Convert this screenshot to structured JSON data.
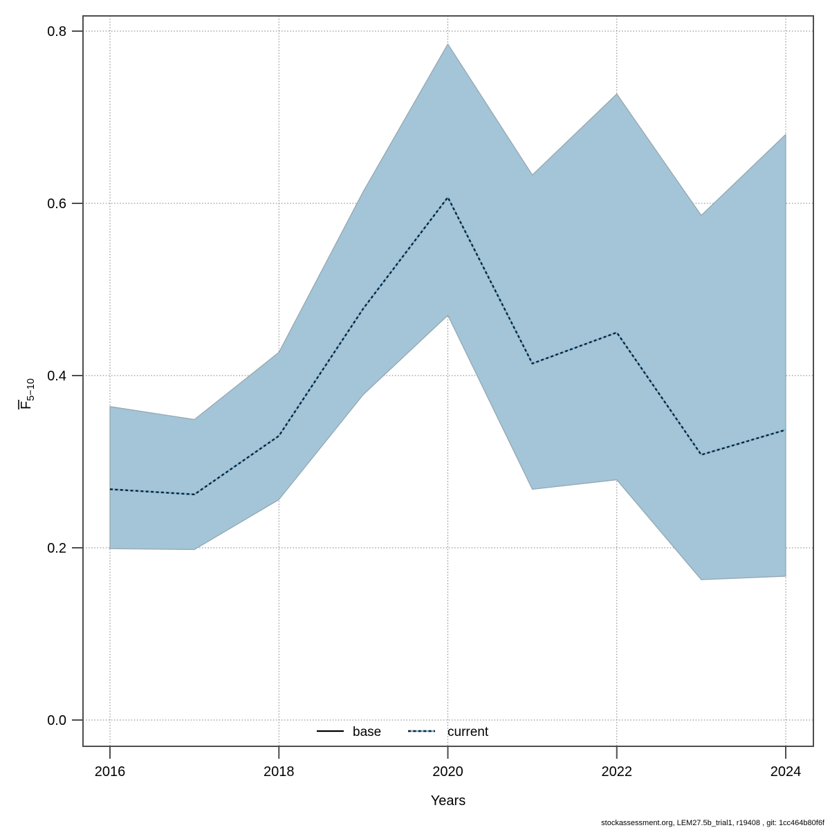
{
  "chart_data": {
    "type": "line",
    "title": "",
    "xlabel": "Years",
    "ylabel": "F̅5−10",
    "x": [
      2016,
      2017,
      2018,
      2019,
      2020,
      2021,
      2022,
      2023,
      2024
    ],
    "series": [
      {
        "name": "current",
        "line_style": "dotted",
        "values": [
          0.268,
          0.262,
          0.33,
          0.478,
          0.607,
          0.414,
          0.45,
          0.308,
          0.337
        ]
      }
    ],
    "confidence_band": {
      "low": [
        0.199,
        0.198,
        0.256,
        0.378,
        0.47,
        0.268,
        0.279,
        0.163,
        0.167
      ],
      "high": [
        0.364,
        0.349,
        0.427,
        0.614,
        0.785,
        0.633,
        0.727,
        0.586,
        0.68
      ]
    },
    "xticks": [
      2016,
      2018,
      2020,
      2022,
      2024
    ],
    "yticks": [
      0.0,
      0.2,
      0.4,
      0.6,
      0.8
    ],
    "xlim": [
      2016,
      2024
    ],
    "ylim": [
      0.0,
      0.8
    ],
    "grid": true,
    "legend": [
      "base",
      "current"
    ],
    "legend_position": "bottom-center"
  },
  "axes": {
    "x_title": "Years",
    "y_title_main": "F",
    "y_title_sub": "5−10"
  },
  "legend": {
    "base_label": "base",
    "current_label": "current"
  },
  "footer": {
    "credit": "stockassessment.org, LEM27.5b_trial1, r19408 , git: 1cc464b80f6f"
  },
  "colors": {
    "band": "#a3c5d7",
    "band_edge": "#95a7b2",
    "current_underlay": "#7eb6dc",
    "current_dash": "#13222e",
    "grid": "#7a7a7a",
    "axis_box": "#4d4d4d",
    "text": "#000000"
  }
}
